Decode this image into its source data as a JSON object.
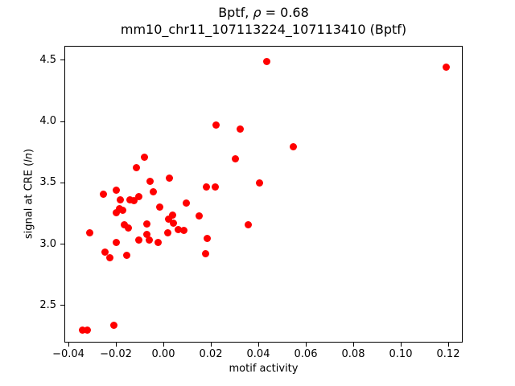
{
  "figure": {
    "title_line1_prefix": "Bptf, ",
    "title_line1_rho": "ρ",
    "title_line1_suffix": " = 0.68",
    "title_line2": "mm10_chr11_107113224_107113410 (Bptf)",
    "xlabel": "motif activity",
    "ylabel_prefix": "signal at CRE (",
    "ylabel_italic": "ln",
    "ylabel_suffix": ")"
  },
  "chart_data": {
    "type": "scatter",
    "title": "Bptf, ρ = 0.68",
    "subtitle": "mm10_chr11_107113224_107113410 (Bptf)",
    "correlation_rho": 0.68,
    "xlabel": "motif activity",
    "ylabel": "signal at CRE (ln)",
    "legend": null,
    "grid": false,
    "marker_color": "#ff0000",
    "marker_diameter_px": 9,
    "xlim": [
      -0.0417,
      0.1261
    ],
    "ylim": [
      2.198,
      4.618
    ],
    "xticks": {
      "values": [
        -0.04,
        -0.02,
        0.0,
        0.02,
        0.04,
        0.06,
        0.08,
        0.1,
        0.12
      ],
      "labels": [
        "−0.04",
        "−0.02",
        "0.00",
        "0.02",
        "0.04",
        "0.06",
        "0.08",
        "0.10",
        "0.12"
      ]
    },
    "yticks": {
      "values": [
        2.5,
        3.0,
        3.5,
        4.0,
        4.5
      ],
      "labels": [
        "2.5",
        "3.0",
        "3.5",
        "4.0",
        "4.5"
      ]
    },
    "points": [
      [
        -0.0341,
        2.297
      ],
      [
        -0.0322,
        2.297
      ],
      [
        -0.021,
        2.336
      ],
      [
        -0.031,
        3.095
      ],
      [
        -0.0245,
        2.933
      ],
      [
        -0.0227,
        2.893
      ],
      [
        -0.0155,
        2.911
      ],
      [
        -0.02,
        3.013
      ],
      [
        -0.0252,
        3.411
      ],
      [
        -0.0199,
        3.438
      ],
      [
        -0.018,
        3.359
      ],
      [
        -0.014,
        3.362
      ],
      [
        -0.0123,
        3.357
      ],
      [
        -0.0102,
        3.389
      ],
      [
        -0.0186,
        3.29
      ],
      [
        -0.0171,
        3.274
      ],
      [
        -0.0199,
        3.257
      ],
      [
        -0.0166,
        3.156
      ],
      [
        -0.0146,
        3.13
      ],
      [
        -0.0071,
        3.166
      ],
      [
        -0.0071,
        3.077
      ],
      [
        -0.0105,
        3.034
      ],
      [
        -0.0059,
        3.031
      ],
      [
        -0.0016,
        3.303
      ],
      [
        0.0097,
        3.339
      ],
      [
        0.0039,
        3.238
      ],
      [
        0.0022,
        3.206
      ],
      [
        0.0043,
        3.175
      ],
      [
        0.0151,
        3.231
      ],
      [
        0.0019,
        3.093
      ],
      [
        0.0061,
        3.118
      ],
      [
        0.0087,
        3.112
      ],
      [
        -0.0022,
        3.015
      ],
      [
        0.0185,
        3.046
      ],
      [
        0.0178,
        2.922
      ],
      [
        0.0359,
        3.156
      ],
      [
        0.018,
        3.47
      ],
      [
        0.0219,
        3.466
      ],
      [
        -0.0055,
        3.513
      ],
      [
        0.0027,
        3.539
      ],
      [
        -0.0042,
        3.428
      ],
      [
        -0.0113,
        3.626
      ],
      [
        -0.0081,
        3.707
      ],
      [
        0.0223,
        3.969
      ],
      [
        0.0323,
        3.941
      ],
      [
        0.0303,
        3.695
      ],
      [
        0.0404,
        3.501
      ],
      [
        0.0434,
        4.49
      ],
      [
        0.119,
        4.441
      ],
      [
        0.0547,
        3.792
      ]
    ]
  }
}
